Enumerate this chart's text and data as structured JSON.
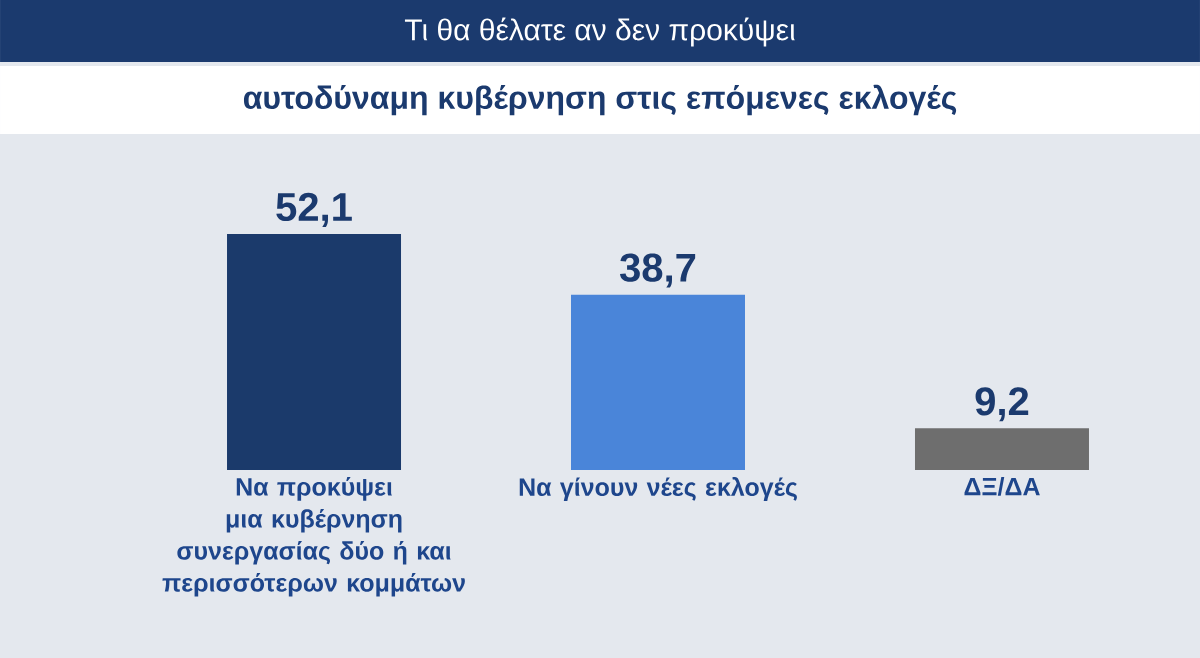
{
  "chart_data": {
    "type": "bar",
    "title": "Τι θα θέλατε αν δεν προκύψει",
    "subtitle": "αυτοδύναμη κυβέρνηση στις επόμενες  εκλογές",
    "categories": [
      "Να προκύψει μια κυβέρνηση συνεργασίας δύο ή και περισσότερων κομμάτων",
      "Να γίνουν νέες εκλογές",
      "ΔΞ/ΔΑ"
    ],
    "values": [
      52.1,
      38.7,
      9.2
    ],
    "colors": [
      "#1b3a6b",
      "#4a85d9",
      "#6e6e6e"
    ],
    "value_labels": [
      "52,1",
      "38,7",
      "9,2"
    ]
  }
}
